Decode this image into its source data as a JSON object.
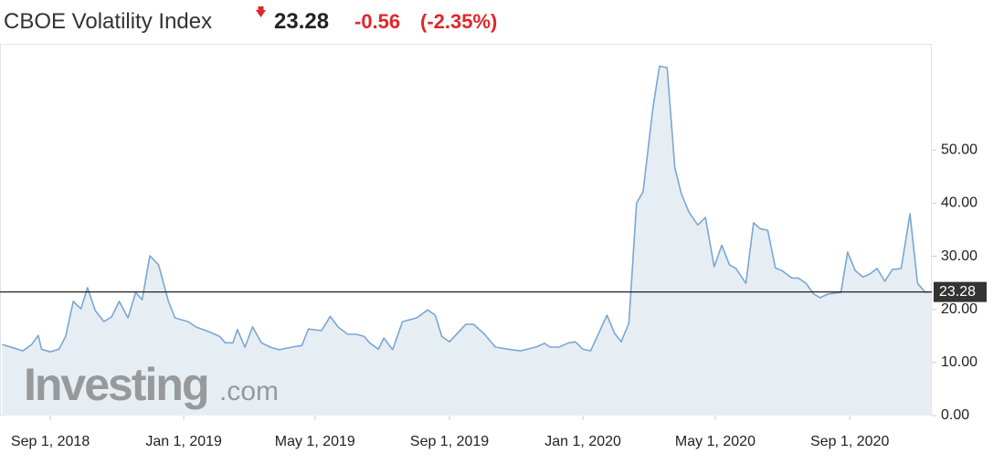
{
  "chart_data": {
    "type": "area",
    "title": "CBOE Volatility Index",
    "last": 23.28,
    "change": -0.56,
    "change_percent": "(-2.35%)",
    "watermark": {
      "brand": "Investing",
      "domain": ".com"
    },
    "color": "#7ba6d4",
    "fill": "#e6eef4",
    "x": [
      "2018-07-19",
      "2018-07-30",
      "2018-08-07",
      "2018-08-15",
      "2018-08-21",
      "2018-08-24",
      "2018-09-01",
      "2018-09-09",
      "2018-09-15",
      "2018-09-22",
      "2018-09-29",
      "2018-10-05",
      "2018-10-12",
      "2018-10-20",
      "2018-10-27",
      "2018-11-03",
      "2018-11-11",
      "2018-11-18",
      "2018-11-24",
      "2018-12-01",
      "2018-12-09",
      "2018-12-18",
      "2018-12-24",
      "2019-01-05",
      "2019-01-12",
      "2019-01-24",
      "2019-02-03",
      "2019-02-08",
      "2019-02-15",
      "2019-02-19",
      "2019-02-26",
      "2019-03-05",
      "2019-03-13",
      "2019-03-21",
      "2019-03-29",
      "2019-04-10",
      "2019-04-19",
      "2019-04-25",
      "2019-05-07",
      "2019-05-15",
      "2019-05-22",
      "2019-05-31",
      "2019-06-08",
      "2019-06-15",
      "2019-06-20",
      "2019-06-28",
      "2019-07-03",
      "2019-07-11",
      "2019-07-20",
      "2019-08-02",
      "2019-08-12",
      "2019-08-19",
      "2019-08-25",
      "2019-09-01",
      "2019-09-16",
      "2019-09-23",
      "2019-10-03",
      "2019-10-13",
      "2019-10-28",
      "2019-11-05",
      "2019-11-19",
      "2019-11-27",
      "2019-12-02",
      "2019-12-10",
      "2019-12-19",
      "2019-12-25",
      "2020-01-01",
      "2020-01-08",
      "2020-01-14",
      "2020-01-23",
      "2020-01-30",
      "2020-02-05",
      "2020-02-12",
      "2020-02-19",
      "2020-02-25",
      "2020-03-05",
      "2020-03-11",
      "2020-03-18",
      "2020-03-25",
      "2020-03-31",
      "2020-04-07",
      "2020-04-15",
      "2020-04-22",
      "2020-04-30",
      "2020-05-07",
      "2020-05-14",
      "2020-05-20",
      "2020-05-29",
      "2020-06-05",
      "2020-06-11",
      "2020-06-18",
      "2020-06-25",
      "2020-07-01",
      "2020-07-10",
      "2020-07-16",
      "2020-07-23",
      "2020-07-30",
      "2020-08-05",
      "2020-08-12",
      "2020-08-24",
      "2020-08-30",
      "2020-09-06",
      "2020-09-13",
      "2020-09-19",
      "2020-09-26",
      "2020-10-03",
      "2020-10-10",
      "2020-10-18",
      "2020-10-26",
      "2020-11-02",
      "2020-11-09",
      "2020-11-14"
    ],
    "values": [
      13.4,
      12.7,
      12.2,
      13.4,
      15.1,
      12.5,
      12.0,
      12.5,
      14.9,
      21.5,
      20.1,
      24.1,
      19.8,
      17.7,
      18.6,
      21.5,
      18.4,
      23.2,
      21.8,
      30.1,
      28.4,
      21.5,
      18.4,
      17.7,
      16.7,
      15.8,
      14.9,
      13.7,
      13.7,
      16.2,
      12.9,
      16.7,
      13.7,
      12.9,
      12.4,
      12.9,
      13.2,
      16.3,
      16.0,
      18.7,
      16.7,
      15.3,
      15.3,
      14.9,
      13.7,
      12.5,
      14.6,
      12.4,
      17.7,
      18.4,
      19.9,
      18.9,
      14.9,
      13.9,
      17.2,
      17.2,
      15.3,
      12.9,
      12.4,
      12.2,
      12.9,
      13.6,
      12.9,
      12.9,
      13.7,
      13.9,
      12.5,
      12.2,
      14.9,
      18.9,
      15.5,
      13.9,
      17.4,
      40.0,
      42.1,
      57.9,
      65.8,
      65.5,
      46.7,
      41.8,
      38.3,
      35.9,
      37.3,
      28.0,
      32.1,
      28.4,
      27.7,
      24.9,
      36.3,
      35.2,
      34.9,
      27.8,
      27.3,
      25.9,
      25.9,
      24.9,
      22.9,
      22.2,
      22.9,
      23.2,
      30.8,
      27.3,
      26.1,
      26.6,
      27.7,
      25.3,
      27.5,
      27.7,
      38.0,
      24.9,
      23.2,
      23.28
    ],
    "xlim": [
      "2018-07-17",
      "2020-11-15"
    ],
    "xticks": [
      {
        "value": "2018-09-01",
        "label": "Sep 1, 2018"
      },
      {
        "value": "2019-01-01",
        "label": "Jan 1, 2019"
      },
      {
        "value": "2019-05-01",
        "label": "May 1, 2019"
      },
      {
        "value": "2019-09-01",
        "label": "Sep 1, 2019"
      },
      {
        "value": "2020-01-01",
        "label": "Jan 1, 2020"
      },
      {
        "value": "2020-05-01",
        "label": "May 1, 2020"
      },
      {
        "value": "2020-09-01",
        "label": "Sep 1, 2020"
      }
    ],
    "ylim": [
      0,
      70
    ],
    "yticks": [
      {
        "value": 0,
        "label": "0.00"
      },
      {
        "value": 10,
        "label": "10.00"
      },
      {
        "value": 20,
        "label": "20.00"
      },
      {
        "value": 30,
        "label": "30.00"
      },
      {
        "value": 40,
        "label": "40.00"
      },
      {
        "value": 50,
        "label": "50.00"
      }
    ]
  }
}
